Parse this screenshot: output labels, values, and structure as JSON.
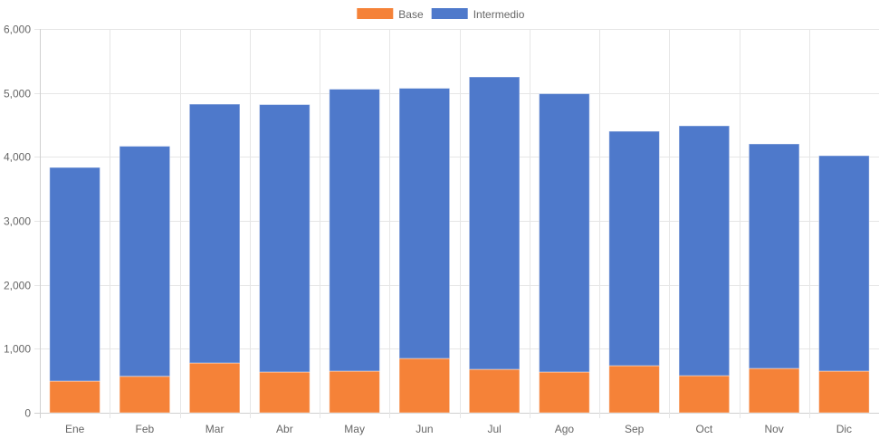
{
  "chart_data": {
    "type": "bar",
    "stacked": true,
    "title": "",
    "xlabel": "",
    "ylabel": "",
    "categories": [
      "Ene",
      "Feb",
      "Mar",
      "Abr",
      "May",
      "Jun",
      "Jul",
      "Ago",
      "Sep",
      "Oct",
      "Nov",
      "Dic"
    ],
    "series": [
      {
        "name": "Base",
        "color": "#f58238",
        "values": [
          495,
          570,
          778,
          637,
          651,
          849,
          679,
          637,
          736,
          580,
          693,
          651
        ]
      },
      {
        "name": "Intermedio",
        "color": "#4e79cb",
        "values": [
          3340,
          3597,
          4047,
          4181,
          4408,
          4224,
          4571,
          4351,
          3665,
          3906,
          3510,
          3368
        ]
      }
    ],
    "ylim": [
      0,
      6000
    ],
    "yticks": [
      0,
      1000,
      2000,
      3000,
      4000,
      5000,
      6000
    ],
    "ytick_labels": [
      "0",
      "1,000",
      "2,000",
      "3,000",
      "4,000",
      "5,000",
      "6,000"
    ],
    "grid": true,
    "legend_position": "top-center"
  }
}
